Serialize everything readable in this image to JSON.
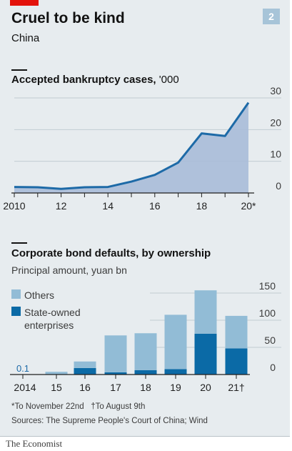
{
  "header": {
    "title": "Cruel to be kind",
    "subtitle": "China",
    "badge": "2"
  },
  "colors": {
    "accent_red": "#e3120b",
    "area_fill": "#a9bdd8",
    "line": "#1d6aa7",
    "others": "#92bcd6",
    "state_owned": "#0b6aa6",
    "background": "#e7ecef"
  },
  "chart_data": [
    {
      "type": "area",
      "title": "Accepted bankruptcy cases,",
      "unit": "'000",
      "x": [
        2010,
        2011,
        2012,
        2013,
        2014,
        2015,
        2016,
        2017,
        2018,
        2019,
        2020
      ],
      "values": [
        1.9,
        1.8,
        1.3,
        1.8,
        1.9,
        3.6,
        5.7,
        9.6,
        18.8,
        18.0,
        28.5
      ],
      "xticks": [
        "2010",
        "12",
        "14",
        "16",
        "18",
        "20*"
      ],
      "ylim": [
        0,
        30
      ],
      "yticks": [
        "0",
        "10",
        "20",
        "30"
      ],
      "grid": true
    },
    {
      "type": "bar",
      "title": "Corporate bond defaults, by ownership",
      "subtitle": "Principal amount, yuan bn",
      "categories": [
        "2014",
        "15",
        "16",
        "17",
        "18",
        "19",
        "20",
        "21†"
      ],
      "series": [
        {
          "name": "State-owned enterprises",
          "values": [
            0,
            0.5,
            12,
            4,
            8,
            10,
            75,
            48
          ]
        },
        {
          "name": "Others",
          "values": [
            0.1,
            4.5,
            12,
            68,
            68,
            100,
            80,
            60
          ]
        }
      ],
      "data_labels": [
        "0.1"
      ],
      "ylim": [
        0,
        150
      ],
      "yticks": [
        "0",
        "50",
        "100",
        "150"
      ],
      "grid": true,
      "legend": "top-left"
    }
  ],
  "notes": {
    "footnote_a": "*To November 22nd",
    "footnote_b": "†To August 9th",
    "sources": "Sources: The Supreme People's Court of China; Wind"
  },
  "brand": "The Economist"
}
